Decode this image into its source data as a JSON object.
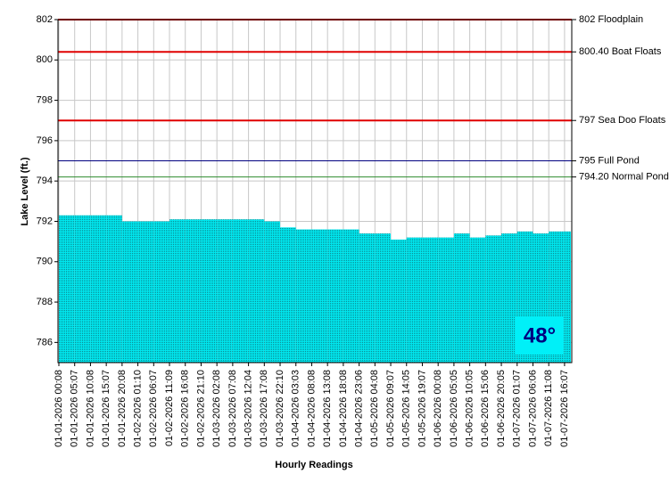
{
  "chart_data": {
    "type": "bar",
    "y_axis_label": "Lake Level (ft.)",
    "x_axis_label": "Hourly Readings",
    "categories": [
      "01-01-2026 00:08",
      "01-01-2026 05:07",
      "01-01-2026 10:08",
      "01-01-2026 15:07",
      "01-01-2026 20:08",
      "01-02-2026 01:10",
      "01-02-2026 06:07",
      "01-02-2026 11:09",
      "01-02-2026 16:08",
      "01-02-2026 21:10",
      "01-03-2026 02:08",
      "01-03-2026 07:08",
      "01-03-2026 12:04",
      "01-03-2026 17:08",
      "01-03-2026 22:10",
      "01-04-2026 03:03",
      "01-04-2026 08:08",
      "01-04-2026 13:08",
      "01-04-2026 18:08",
      "01-04-2026 23:06",
      "01-05-2026 04:08",
      "01-05-2026 09:07",
      "01-05-2026 14:05",
      "01-05-2026 19:07",
      "01-06-2026 00:08",
      "01-06-2026 05:05",
      "01-06-2026 10:05",
      "01-06-2026 15:06",
      "01-06-2026 20:05",
      "01-07-2026 01:07",
      "01-07-2026 06:06",
      "01-07-2026 11:08",
      "01-07-2026 16:07"
    ],
    "values": [
      792.3,
      792.3,
      792.3,
      792.3,
      792.0,
      792.0,
      792.0,
      792.1,
      792.1,
      792.1,
      792.1,
      792.1,
      792.1,
      792.0,
      791.7,
      791.6,
      791.6,
      791.6,
      791.6,
      791.4,
      791.4,
      791.1,
      791.2,
      791.2,
      791.2,
      791.4,
      791.2,
      791.3,
      791.4,
      791.5,
      791.4,
      791.5,
      791.5
    ],
    "color": "#00e8f0",
    "ylim": [
      785,
      802
    ],
    "yticks": [
      786,
      788,
      790,
      792,
      794,
      796,
      798,
      800,
      802
    ],
    "grid": true,
    "reference_lines": [
      {
        "value": 802,
        "label": "802 Floodplain",
        "color": "#e00000"
      },
      {
        "value": 800.4,
        "label": "800.40 Boat Floats",
        "color": "#e00000"
      },
      {
        "value": 797,
        "label": "797 Sea Doo Floats",
        "color": "#e00000"
      },
      {
        "value": 795,
        "label": "795 Full Pond",
        "color": "#000080"
      },
      {
        "value": 794.2,
        "label": "794.20 Normal Pond",
        "color": "#2e8b2e"
      }
    ],
    "annotation": "48°"
  }
}
